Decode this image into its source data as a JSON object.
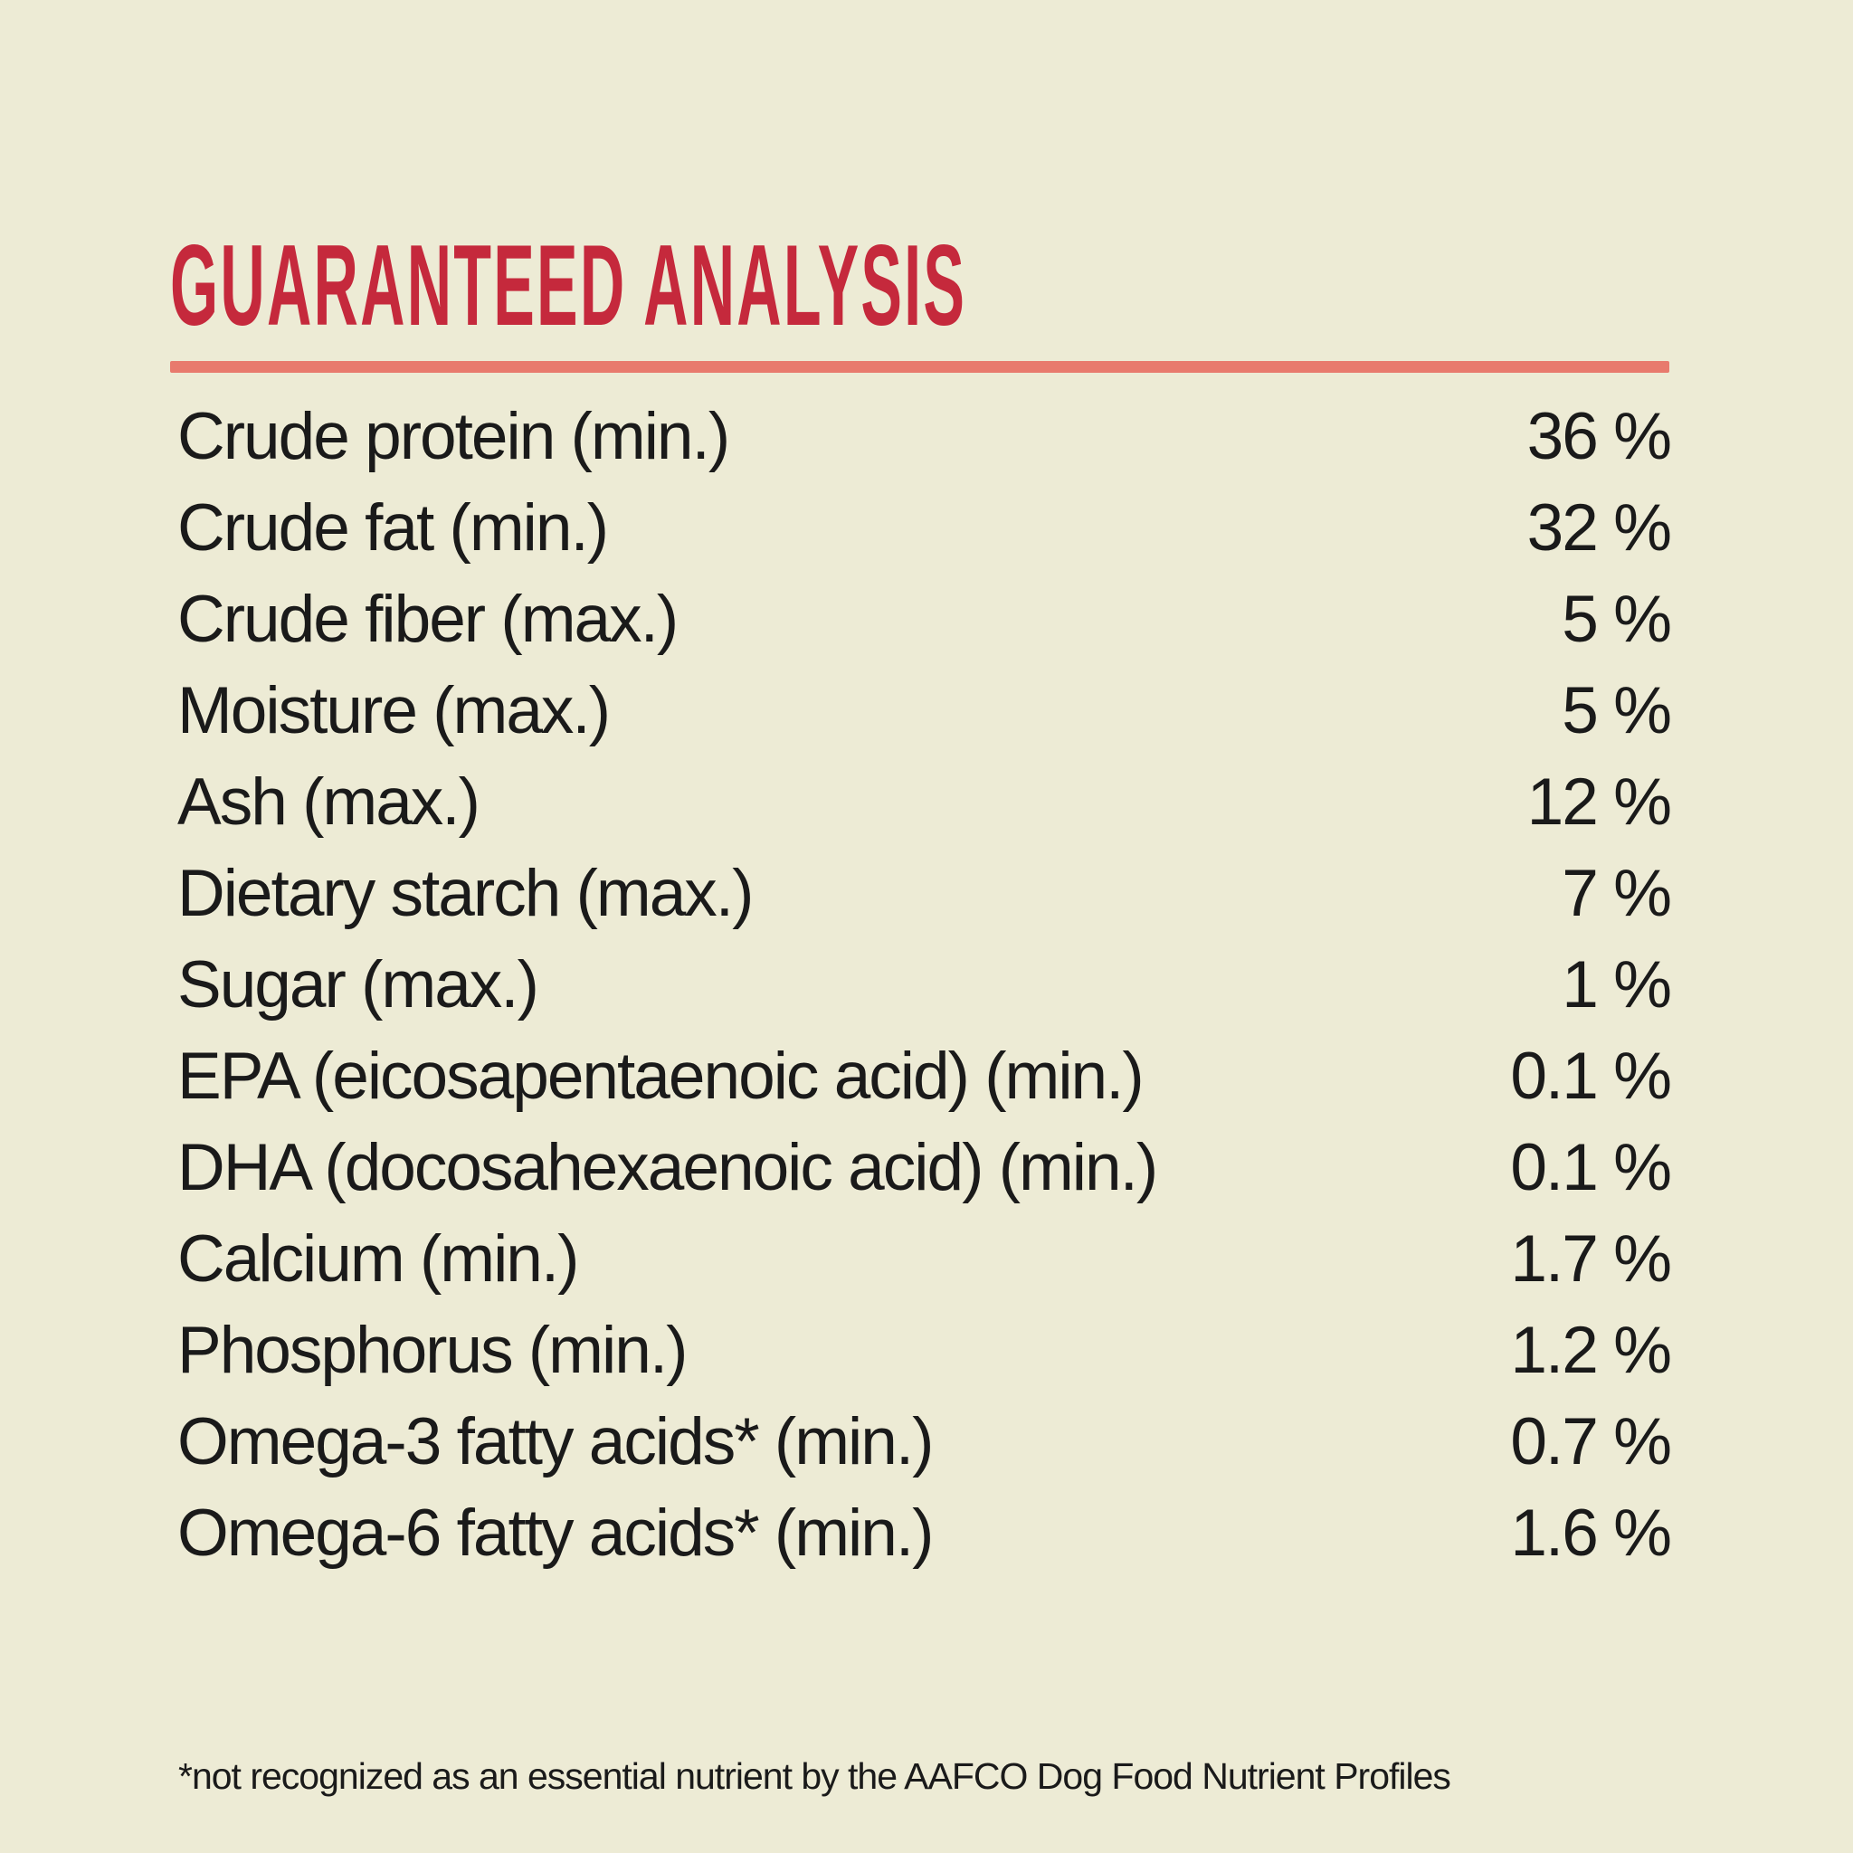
{
  "page": {
    "background_color": "#edebd5",
    "accent_red": "#c5293c",
    "rule_color": "#e87a6d",
    "text_color": "#1a1a1a"
  },
  "header": {
    "title": "GUARANTEED ANALYSIS"
  },
  "table": {
    "rows": [
      {
        "label": "Crude protein (min.)",
        "value": "36 %"
      },
      {
        "label": "Crude fat (min.)",
        "value": "32 %"
      },
      {
        "label": "Crude fiber (max.)",
        "value": "5 %"
      },
      {
        "label": "Moisture (max.)",
        "value": "5 %"
      },
      {
        "label": "Ash (max.)",
        "value": "12 %"
      },
      {
        "label": "Dietary starch (max.)",
        "value": "7 %"
      },
      {
        "label": "Sugar (max.)",
        "value": "1 %"
      },
      {
        "label": "EPA (eicosapentaenoic acid) (min.)",
        "value": "0.1 %"
      },
      {
        "label": "DHA (docosahexaenoic acid) (min.)",
        "value": "0.1 %"
      },
      {
        "label": "Calcium (min.)",
        "value": "1.7 %"
      },
      {
        "label": "Phosphorus (min.)",
        "value": "1.2 %"
      },
      {
        "label": "Omega-3 fatty acids* (min.)",
        "value": "0.7 %"
      },
      {
        "label": "Omega-6 fatty acids* (min.)",
        "value": "1.6 %"
      }
    ]
  },
  "footnote": "*not recognized as an essential nutrient by the AAFCO Dog Food Nutrient Profiles"
}
